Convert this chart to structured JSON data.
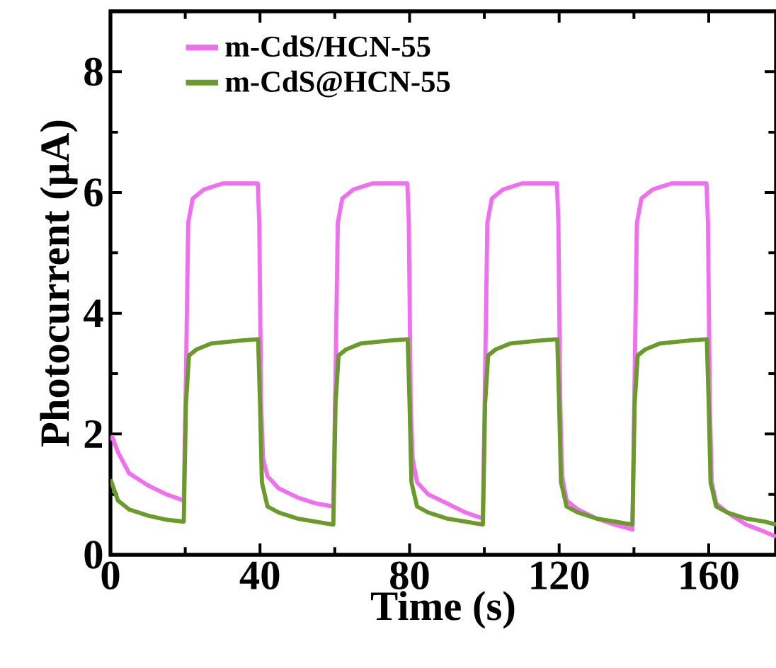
{
  "chart_data": {
    "type": "line",
    "xlabel": "Time (s)",
    "ylabel": "Photocurrent (μA)",
    "xlim": [
      0,
      178
    ],
    "ylim": [
      0,
      9
    ],
    "xticks": [
      0,
      40,
      80,
      120,
      160
    ],
    "yticks": [
      0,
      2,
      4,
      6,
      8
    ],
    "legend": "top left",
    "line_style": "solid",
    "marker": "none",
    "series": [
      {
        "name": "m-CdS/HCN-55",
        "color": "#f06ef0",
        "x": [
          0,
          0.5,
          2,
          5,
          10,
          15,
          19.6,
          20.2,
          20.8,
          22,
          25,
          30,
          35,
          39.4,
          39.8,
          40.3,
          40.8,
          42,
          45,
          50,
          55,
          59.6,
          60.2,
          60.8,
          62,
          65,
          70,
          75,
          79.4,
          79.8,
          80.3,
          80.8,
          82,
          85,
          90,
          95,
          99.6,
          100.2,
          100.8,
          102,
          105,
          110,
          115,
          119.4,
          119.8,
          120.3,
          120.8,
          122,
          125,
          130,
          135,
          139.6,
          140.2,
          140.8,
          142,
          145,
          150,
          155,
          159.4,
          159.8,
          160.3,
          160.8,
          162,
          165,
          170,
          175,
          178
        ],
        "values": [
          1.9,
          1.95,
          1.7,
          1.35,
          1.15,
          1.0,
          0.9,
          3.0,
          5.5,
          5.9,
          6.05,
          6.15,
          6.15,
          6.15,
          5.5,
          2.5,
          1.6,
          1.3,
          1.1,
          0.95,
          0.85,
          0.8,
          3.0,
          5.5,
          5.9,
          6.05,
          6.15,
          6.15,
          6.15,
          5.5,
          2.5,
          1.6,
          1.2,
          1.0,
          0.85,
          0.7,
          0.6,
          3.0,
          5.5,
          5.9,
          6.05,
          6.15,
          6.15,
          6.15,
          5.5,
          2.5,
          1.3,
          0.9,
          0.75,
          0.6,
          0.5,
          0.42,
          3.0,
          5.5,
          5.9,
          6.05,
          6.15,
          6.15,
          6.15,
          5.5,
          2.5,
          1.2,
          0.85,
          0.7,
          0.5,
          0.38,
          0.3
        ]
      },
      {
        "name": "m-CdS@HCN-55",
        "color": "#6a9a2a",
        "x": [
          0,
          2,
          5,
          10,
          15,
          19.6,
          20.2,
          21,
          23,
          27,
          35,
          39.5,
          40,
          40.5,
          42,
          45,
          50,
          59.6,
          60.2,
          61,
          63,
          67,
          75,
          79.5,
          80,
          80.5,
          82,
          85,
          90,
          95,
          99.6,
          100.2,
          101,
          103,
          107,
          115,
          119.5,
          120,
          120.5,
          122,
          125,
          130,
          135,
          139.6,
          140.2,
          141,
          143,
          147,
          155,
          159.5,
          160,
          160.5,
          162,
          165,
          170,
          175,
          178
        ],
        "values": [
          1.25,
          0.9,
          0.75,
          0.65,
          0.58,
          0.55,
          2.5,
          3.3,
          3.4,
          3.5,
          3.55,
          3.57,
          2.5,
          1.2,
          0.8,
          0.7,
          0.6,
          0.5,
          2.5,
          3.3,
          3.4,
          3.5,
          3.55,
          3.57,
          2.5,
          1.2,
          0.8,
          0.7,
          0.6,
          0.55,
          0.5,
          2.5,
          3.3,
          3.4,
          3.5,
          3.55,
          3.57,
          2.5,
          1.2,
          0.8,
          0.7,
          0.6,
          0.55,
          0.5,
          2.5,
          3.3,
          3.4,
          3.5,
          3.55,
          3.57,
          2.5,
          1.2,
          0.8,
          0.7,
          0.6,
          0.55,
          0.5
        ]
      }
    ]
  }
}
